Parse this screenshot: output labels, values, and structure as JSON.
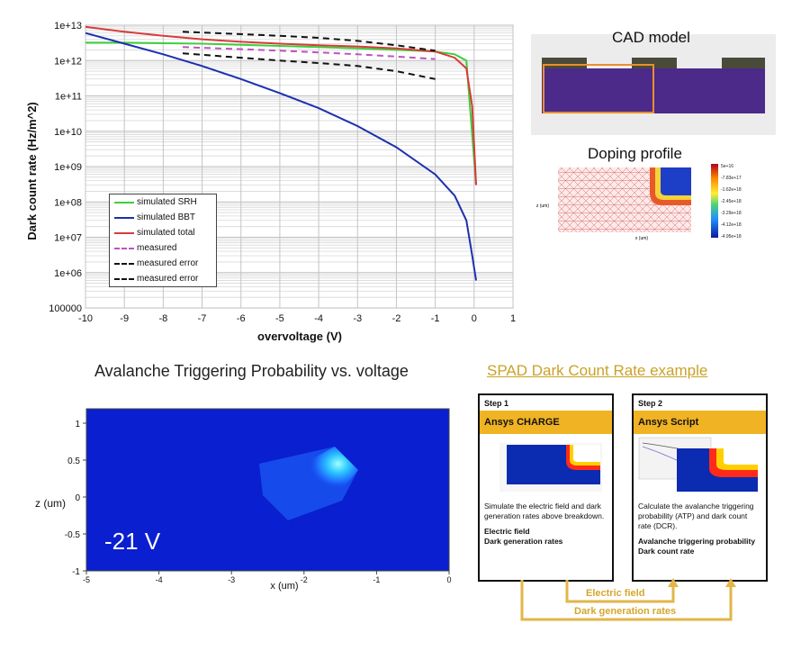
{
  "dcr_chart": {
    "ylabel": "Dark count rate (Hz/m^2)",
    "xlabel": "overvoltage (V)",
    "y_tick_labels": [
      "1e+13",
      "1e+12",
      "1e+11",
      "1e+10",
      "1e+09",
      "1e+08",
      "1e+07",
      "1e+06",
      "100000"
    ],
    "x_tick_labels": [
      "-10",
      "-9",
      "-8",
      "-7",
      "-6",
      "-5",
      "-4",
      "-3",
      "-2",
      "-1",
      "0",
      "1"
    ],
    "legend": [
      {
        "label": "simulated SRH",
        "color": "#3ccf3c",
        "style": "solid"
      },
      {
        "label": "simulated BBT",
        "color": "#1c2fb0",
        "style": "solid"
      },
      {
        "label": "simulated total",
        "color": "#d93a3a",
        "style": "solid"
      },
      {
        "label": "measured",
        "color": "#c052c0",
        "style": "dashed"
      },
      {
        "label": "measured error",
        "color": "#111111",
        "style": "dashed"
      },
      {
        "label": "measured error",
        "color": "#111111",
        "style": "dashed"
      }
    ]
  },
  "cad_title": "CAD model",
  "doping_title": "Doping profile",
  "doping_axis": {
    "z_label": "z (um)",
    "x_label": "x (um)"
  },
  "doping_colorbar_labels": [
    "5e+16",
    "-7.83e+17",
    "-1.62e+18",
    "-2.45e+18",
    "-3.29e+18",
    "-4.12e+18",
    "-4.95e+18"
  ],
  "atp_title": "Avalanche Triggering Probability vs. voltage",
  "atp_plot": {
    "voltage_label": "-21 V",
    "ylabel": "z (um)",
    "xlabel": "x (um)",
    "y_tick_labels": [
      "1",
      "0.5",
      "0",
      "-0.5",
      "-1"
    ],
    "x_tick_labels": [
      "-5",
      "-4",
      "-3",
      "-2",
      "-1",
      "0"
    ]
  },
  "spad_link": "SPAD Dark Count Rate example",
  "steps": [
    {
      "step": "Step 1",
      "tool": "Ansys CHARGE",
      "desc": "Simulate the electric field and dark generation rates above breakdown.",
      "outputs": [
        "Electric field",
        "Dark generation rates"
      ]
    },
    {
      "step": "Step 2",
      "tool": "Ansys Script",
      "desc": "Calculate the avalanche triggering probability (ATP) and dark count rate (DCR).",
      "outputs": [
        "Avalanche triggering probability",
        "Dark count rate"
      ]
    }
  ],
  "flow_labels": {
    "electric_field": "Electric field",
    "dark_generation": "Dark generation rates"
  },
  "chart_data": {
    "type": "line",
    "title": "",
    "xlabel": "overvoltage (V)",
    "ylabel": "Dark count rate (Hz/m^2)",
    "xlim": [
      -10,
      1
    ],
    "ylim": [
      100000,
      10000000000000
    ],
    "yscale": "log",
    "grid": true,
    "legend_position": "bottom-left",
    "series": [
      {
        "name": "simulated SRH",
        "x": [
          -10,
          -9,
          -8,
          -7,
          -6,
          -5,
          -4,
          -3,
          -2,
          -1.5,
          -1,
          -0.5,
          -0.2,
          0.05
        ],
        "y": [
          3200000000000.0,
          3200000000000.0,
          3100000000000.0,
          3000000000000.0,
          2800000000000.0,
          2600000000000.0,
          2400000000000.0,
          2200000000000.0,
          2000000000000.0,
          1900000000000.0,
          1800000000000.0,
          1500000000000.0,
          1000000000000.0,
          300000000.0
        ]
      },
      {
        "name": "simulated BBT",
        "x": [
          -10,
          -9,
          -8,
          -7,
          -6,
          -5,
          -4,
          -3,
          -2,
          -1,
          -0.5,
          -0.2,
          -0.05,
          0.05
        ],
        "y": [
          6000000000000.0,
          3000000000000.0,
          1500000000000.0,
          700000000000.0,
          300000000000.0,
          120000000000.0,
          45000000000.0,
          14000000000.0,
          3500000000.0,
          600000000.0,
          150000000.0,
          30000000.0,
          3000000.0,
          600000.0
        ]
      },
      {
        "name": "simulated total",
        "x": [
          -10,
          -9,
          -8,
          -7,
          -6,
          -5,
          -4,
          -3,
          -2,
          -1,
          -0.5,
          -0.2,
          -0.05,
          0.05
        ],
        "y": [
          9000000000000.0,
          6500000000000.0,
          5000000000000.0,
          4000000000000.0,
          3400000000000.0,
          3000000000000.0,
          2700000000000.0,
          2500000000000.0,
          2200000000000.0,
          1800000000000.0,
          1200000000000.0,
          600000000000.0,
          50000000000.0,
          300000000.0
        ]
      },
      {
        "name": "measured",
        "x": [
          -7.5,
          -6,
          -5,
          -4,
          -3,
          -2,
          -1
        ],
        "y": [
          2400000000000.0,
          2100000000000.0,
          1900000000000.0,
          1700000000000.0,
          1500000000000.0,
          1300000000000.0,
          1100000000000.0
        ]
      },
      {
        "name": "measured error",
        "x": [
          -7.5,
          -6,
          -5,
          -4,
          -3,
          -2,
          -1
        ],
        "y": [
          6500000000000.0,
          5600000000000.0,
          5000000000000.0,
          4400000000000.0,
          3600000000000.0,
          2700000000000.0,
          1900000000000.0
        ]
      },
      {
        "name": "measured error",
        "x": [
          -7.5,
          -6,
          -5,
          -4,
          -3,
          -2,
          -1
        ],
        "y": [
          1600000000000.0,
          1200000000000.0,
          1000000000000.0,
          850000000000.0,
          700000000000.0,
          500000000000.0,
          300000000000.0
        ]
      }
    ]
  }
}
